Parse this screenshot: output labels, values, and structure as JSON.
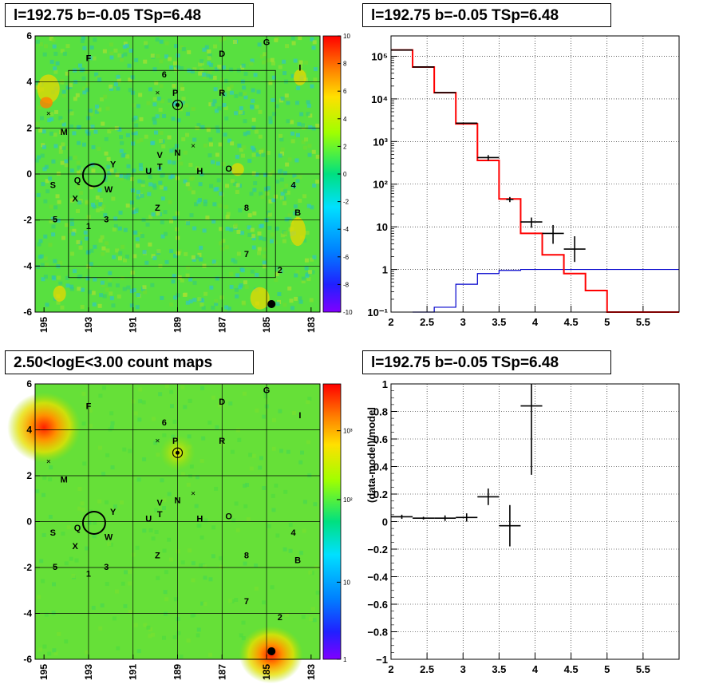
{
  "titles": {
    "map_top": "l=192.75 b=-0.05 TSp=6.48",
    "spectrum": "l=192.75 b=-0.05 TSp=6.48",
    "map_bottom": "2.50<logE<3.00 count maps",
    "residual": "l=192.75 b=-0.05 TSp=6.48"
  },
  "colors": {
    "data": "#000000",
    "model": "#ff0000",
    "source": "#0000cc",
    "grid": "#000000"
  },
  "maps": {
    "x_ticks": [
      "195",
      "193",
      "191",
      "189",
      "187",
      "185",
      "183"
    ],
    "y_ticks": [
      "6",
      "4",
      "2",
      "0",
      "-2",
      "-4",
      "-6"
    ],
    "top_scale": [
      "10",
      "8",
      "6",
      "4",
      "2",
      "0",
      "-2",
      "-4",
      "-6",
      "-8",
      "-10"
    ],
    "bottom_scale": [
      "10³",
      "10²",
      "10",
      "1"
    ],
    "labels": [
      {
        "t": "F",
        "l": 193.0,
        "b": 5.0
      },
      {
        "t": "D",
        "l": 187.0,
        "b": 5.2
      },
      {
        "t": "G",
        "l": 185.0,
        "b": 5.7
      },
      {
        "t": "I",
        "l": 183.5,
        "b": 4.6
      },
      {
        "t": "6",
        "l": 189.6,
        "b": 4.3
      },
      {
        "t": "P",
        "l": 189.1,
        "b": 3.5
      },
      {
        "t": "R",
        "l": 187.0,
        "b": 3.5
      },
      {
        "t": "M",
        "l": 194.1,
        "b": 1.8
      },
      {
        "t": "V",
        "l": 189.8,
        "b": 0.8
      },
      {
        "t": "N",
        "l": 189.0,
        "b": 0.9
      },
      {
        "t": "Y",
        "l": 191.9,
        "b": 0.4
      },
      {
        "t": "T",
        "l": 189.8,
        "b": 0.3
      },
      {
        "t": "U",
        "l": 190.3,
        "b": 0.1
      },
      {
        "t": "H",
        "l": 188.0,
        "b": 0.1
      },
      {
        "t": "O",
        "l": 186.7,
        "b": 0.2
      },
      {
        "t": "S",
        "l": 194.6,
        "b": -0.5
      },
      {
        "t": "Q",
        "l": 193.5,
        "b": -0.3
      },
      {
        "t": "W",
        "l": 192.1,
        "b": -0.7
      },
      {
        "t": "4",
        "l": 183.8,
        "b": -0.5
      },
      {
        "t": "X",
        "l": 193.6,
        "b": -1.1
      },
      {
        "t": "Z",
        "l": 189.9,
        "b": -1.5
      },
      {
        "t": "8",
        "l": 185.9,
        "b": -1.5
      },
      {
        "t": "B",
        "l": 183.6,
        "b": -1.7
      },
      {
        "t": "5",
        "l": 194.5,
        "b": -2.0
      },
      {
        "t": "3",
        "l": 192.2,
        "b": -2.0
      },
      {
        "t": "1",
        "l": 193.0,
        "b": -2.3
      },
      {
        "t": "7",
        "l": 185.9,
        "b": -3.5
      },
      {
        "t": "2",
        "l": 184.4,
        "b": -4.2
      }
    ],
    "crosses": [
      {
        "l": 189.9,
        "b": 3.5
      },
      {
        "l": 194.8,
        "b": 2.6
      },
      {
        "l": 188.3,
        "b": 1.2
      }
    ]
  },
  "chart_data": [
    {
      "type": "line",
      "title": "l=192.75 b=-0.05 TSp=6.48",
      "xlabel": "",
      "ylabel": "",
      "yscale": "log",
      "xlim": [
        2,
        6
      ],
      "ylim": [
        0.1,
        300000
      ],
      "x_ticks": [
        "2",
        "2.5",
        "3",
        "3.5",
        "4",
        "4.5",
        "5",
        "5.5"
      ],
      "y_ticks": [
        "10⁵",
        "10⁴",
        "10³",
        "10²",
        "10",
        "1",
        "10⁻¹"
      ],
      "grid": true,
      "data_points": [
        {
          "x": 2.15,
          "y": 140000,
          "xerr": 0.15
        },
        {
          "x": 2.45,
          "y": 56000,
          "xerr": 0.15
        },
        {
          "x": 2.75,
          "y": 14000,
          "xerr": 0.15
        },
        {
          "x": 3.05,
          "y": 2700,
          "xerr": 0.15
        },
        {
          "x": 3.35,
          "y": 420,
          "xerr": 0.15,
          "yerr": [
            60,
            60
          ]
        },
        {
          "x": 3.65,
          "y": 44,
          "xerr": 0.05,
          "yerr": [
            6,
            6
          ]
        },
        {
          "x": 3.95,
          "y": 13,
          "xerr": 0.15,
          "yerr": [
            3.5,
            3.5
          ]
        },
        {
          "x": 4.25,
          "y": 7,
          "xerr": 0.15,
          "yerr": [
            3,
            4
          ]
        },
        {
          "x": 4.55,
          "y": 3,
          "xerr": 0.15,
          "yerr": [
            1.5,
            3
          ]
        }
      ],
      "model_bins": {
        "edges": [
          2.0,
          2.3,
          2.6,
          2.9,
          3.2,
          3.5,
          3.8,
          4.1,
          4.4,
          4.7,
          5.0,
          6.0
        ],
        "values": [
          140000,
          56000,
          14000,
          2600,
          360,
          45,
          7,
          2.2,
          0.8,
          0.32,
          0.1
        ]
      },
      "source_bins": {
        "edges": [
          2.3,
          2.6,
          2.9,
          3.2,
          3.5,
          3.8,
          6.0
        ],
        "values": [
          0.1,
          0.13,
          0.45,
          0.8,
          0.95,
          1.0
        ]
      }
    },
    {
      "type": "scatter",
      "title": "l=192.75 b=-0.05 TSp=6.48",
      "xlabel": "",
      "ylabel": "(data-model)/model",
      "xlim": [
        2,
        6
      ],
      "ylim": [
        -1,
        1
      ],
      "x_ticks": [
        "2",
        "2.5",
        "3",
        "3.5",
        "4",
        "4.5",
        "5",
        "5.5"
      ],
      "y_ticks": [
        "1",
        "0.8",
        "0.6",
        "0.4",
        "0.2",
        "0",
        "−0.2",
        "−0.4",
        "−0.6",
        "−0.8",
        "−1"
      ],
      "grid": true,
      "points": [
        {
          "x": 2.15,
          "y": 0.035,
          "xerr": 0.15,
          "yerr": 0.015
        },
        {
          "x": 2.45,
          "y": 0.025,
          "xerr": 0.15,
          "yerr": 0.01
        },
        {
          "x": 2.75,
          "y": 0.025,
          "xerr": 0.15,
          "yerr": 0.02
        },
        {
          "x": 3.05,
          "y": 0.03,
          "xerr": 0.15,
          "yerr": 0.03
        },
        {
          "x": 3.35,
          "y": 0.18,
          "xerr": 0.15,
          "yerr": 0.06
        },
        {
          "x": 3.65,
          "y": -0.03,
          "xerr": 0.15,
          "yerr": 0.15
        },
        {
          "x": 3.95,
          "y": 0.84,
          "xerr": 0.15,
          "yerr": 0.5
        }
      ]
    }
  ]
}
